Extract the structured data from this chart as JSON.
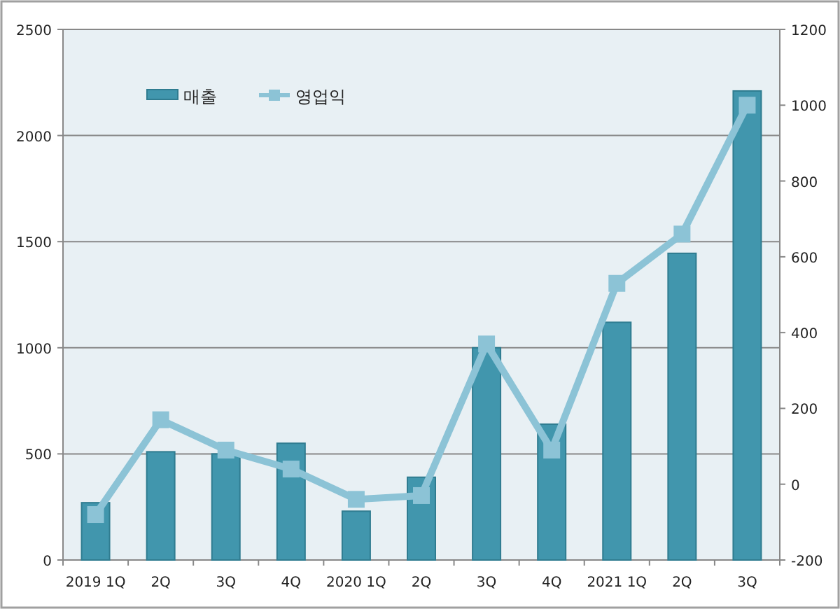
{
  "chart_data": {
    "type": "bar",
    "categories": [
      "2019 1Q",
      "2Q",
      "3Q",
      "4Q",
      "2020 1Q",
      "2Q",
      "3Q",
      "4Q",
      "2021 1Q",
      "2Q",
      "3Q"
    ],
    "series": [
      {
        "name": "매출",
        "color": "#4196ad",
        "values": [
          270,
          510,
          500,
          550,
          230,
          390,
          1000,
          640,
          1120,
          1445,
          2210
        ]
      },
      {
        "name": "영업익",
        "type": "line",
        "axis": "y2",
        "color": "#8cc3d6",
        "marker": "square",
        "values": [
          -80,
          170,
          90,
          40,
          -40,
          -30,
          370,
          90,
          530,
          660,
          1000
        ]
      }
    ],
    "ylim": [
      0,
      2500
    ],
    "yticks": [
      0,
      500,
      1000,
      1500,
      2000,
      2500
    ],
    "y2lim": [
      -200,
      1200
    ],
    "y2ticks": [
      -200,
      0,
      200,
      400,
      600,
      800,
      1000,
      1200
    ],
    "grid": "y",
    "legend": "top left"
  }
}
